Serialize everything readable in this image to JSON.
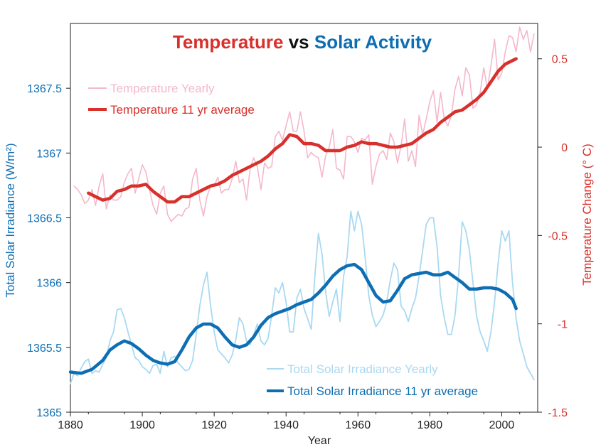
{
  "colors": {
    "temp_line": "#d8302b",
    "temp_yearly": "#f4b8cb",
    "tsi_line": "#0e6eb3",
    "tsi_yearly": "#a9d9f2",
    "title_black": "#111111",
    "axis": "#222222"
  },
  "chart_data": {
    "type": "line",
    "title_parts": [
      "Temperature",
      " vs ",
      "Solar Activity"
    ],
    "xlabel": "Year",
    "ylabel_left": "Total Solar Irradiance (W/m²)",
    "ylabel_right": "Temperature Change (° C)",
    "xlim": [
      1880,
      2010
    ],
    "ylim_left": [
      1365,
      1368
    ],
    "ylim_right": [
      -1.5,
      0.7
    ],
    "x_ticks": [
      1880,
      1900,
      1920,
      1940,
      1960,
      1980,
      2000
    ],
    "x_tick_labels": [
      "1880",
      "1900",
      "1920",
      "1940",
      "1960",
      "1980",
      "2000"
    ],
    "y_left_ticks": [
      1365,
      1365.5,
      1366,
      1366.5,
      1367,
      1367.5
    ],
    "y_left_tick_labels": [
      "1365",
      "1365.5",
      "1366",
      "1366.5",
      "1367",
      "1367.5"
    ],
    "y_right_ticks": [
      -1.5,
      -1,
      -0.5,
      0,
      0.5
    ],
    "y_right_tick_labels": [
      "-1.5",
      "-1",
      "-0.5",
      "0",
      "0.5"
    ],
    "grid": false,
    "legend_top": [
      "Temperature Yearly",
      "Temperature 11 yr average"
    ],
    "legend_bottom": [
      "Total Solar Irradiance Yearly",
      "Total Solar Irradiance 11 yr average"
    ],
    "series": [
      {
        "name": "Temperature Yearly",
        "axis": "right",
        "x": [
          1881,
          1882,
          1883,
          1884,
          1885,
          1886,
          1887,
          1888,
          1889,
          1890,
          1891,
          1892,
          1893,
          1894,
          1895,
          1896,
          1897,
          1898,
          1899,
          1900,
          1901,
          1902,
          1903,
          1904,
          1905,
          1906,
          1907,
          1908,
          1909,
          1910,
          1911,
          1912,
          1913,
          1914,
          1915,
          1916,
          1917,
          1918,
          1919,
          1920,
          1921,
          1922,
          1923,
          1924,
          1925,
          1926,
          1927,
          1928,
          1929,
          1930,
          1931,
          1932,
          1933,
          1934,
          1935,
          1936,
          1937,
          1938,
          1939,
          1940,
          1941,
          1942,
          1943,
          1944,
          1945,
          1946,
          1947,
          1948,
          1949,
          1950,
          1951,
          1952,
          1953,
          1954,
          1955,
          1956,
          1957,
          1958,
          1959,
          1960,
          1961,
          1962,
          1963,
          1964,
          1965,
          1966,
          1967,
          1968,
          1969,
          1970,
          1971,
          1972,
          1973,
          1974,
          1975,
          1976,
          1977,
          1978,
          1979,
          1980,
          1981,
          1982,
          1983,
          1984,
          1985,
          1986,
          1987,
          1988,
          1989,
          1990,
          1991,
          1992,
          1993,
          1994,
          1995,
          1996,
          1997,
          1998,
          1999,
          2000,
          2001,
          2002,
          2003,
          2004,
          2005,
          2006,
          2007,
          2008,
          2009
        ],
        "values": [
          -0.22,
          -0.24,
          -0.27,
          -0.32,
          -0.3,
          -0.24,
          -0.33,
          -0.22,
          -0.15,
          -0.35,
          -0.27,
          -0.3,
          -0.3,
          -0.28,
          -0.2,
          -0.15,
          -0.12,
          -0.26,
          -0.18,
          -0.1,
          -0.14,
          -0.24,
          -0.33,
          -0.38,
          -0.26,
          -0.22,
          -0.38,
          -0.42,
          -0.4,
          -0.38,
          -0.39,
          -0.35,
          -0.34,
          -0.18,
          -0.12,
          -0.3,
          -0.39,
          -0.28,
          -0.22,
          -0.22,
          -0.17,
          -0.26,
          -0.24,
          -0.24,
          -0.18,
          -0.08,
          -0.2,
          -0.18,
          -0.3,
          -0.12,
          -0.06,
          -0.11,
          -0.24,
          -0.09,
          -0.12,
          -0.11,
          0.06,
          0.09,
          0.04,
          0.12,
          0.2,
          0.09,
          0.09,
          0.2,
          0.09,
          -0.06,
          -0.03,
          -0.05,
          -0.06,
          -0.17,
          -0.05,
          0.0,
          0.1,
          -0.12,
          -0.13,
          -0.18,
          0.06,
          0.06,
          0.03,
          -0.03,
          0.05,
          0.04,
          0.07,
          -0.21,
          -0.11,
          -0.04,
          -0.02,
          -0.07,
          0.08,
          0.03,
          -0.09,
          0.01,
          0.16,
          -0.08,
          -0.02,
          -0.11,
          0.18,
          0.07,
          0.16,
          0.26,
          0.32,
          0.14,
          0.31,
          0.16,
          0.12,
          0.18,
          0.33,
          0.4,
          0.29,
          0.45,
          0.41,
          0.22,
          0.24,
          0.31,
          0.45,
          0.33,
          0.46,
          0.61,
          0.38,
          0.42,
          0.54,
          0.63,
          0.62,
          0.54,
          0.68,
          0.61,
          0.66,
          0.54,
          0.64
        ]
      },
      {
        "name": "Temperature 11 yr average",
        "axis": "right",
        "x": [
          1885,
          1887,
          1889,
          1891,
          1893,
          1895,
          1897,
          1899,
          1901,
          1903,
          1905,
          1907,
          1909,
          1911,
          1913,
          1915,
          1917,
          1919,
          1921,
          1923,
          1925,
          1927,
          1929,
          1931,
          1933,
          1935,
          1937,
          1939,
          1941,
          1943,
          1945,
          1947,
          1949,
          1951,
          1953,
          1955,
          1957,
          1959,
          1961,
          1963,
          1965,
          1967,
          1969,
          1971,
          1973,
          1975,
          1977,
          1979,
          1981,
          1983,
          1985,
          1987,
          1989,
          1991,
          1993,
          1995,
          1997,
          1999,
          2001,
          2003,
          2004
        ],
        "values": [
          -0.26,
          -0.28,
          -0.3,
          -0.29,
          -0.25,
          -0.24,
          -0.22,
          -0.22,
          -0.21,
          -0.25,
          -0.28,
          -0.31,
          -0.31,
          -0.28,
          -0.28,
          -0.26,
          -0.24,
          -0.22,
          -0.21,
          -0.19,
          -0.16,
          -0.14,
          -0.12,
          -0.1,
          -0.08,
          -0.05,
          -0.01,
          0.02,
          0.07,
          0.06,
          0.02,
          0.02,
          0.01,
          -0.02,
          -0.02,
          -0.02,
          0.0,
          0.01,
          0.03,
          0.02,
          0.02,
          0.01,
          0.0,
          0.0,
          0.01,
          0.02,
          0.05,
          0.08,
          0.1,
          0.14,
          0.17,
          0.2,
          0.21,
          0.24,
          0.27,
          0.31,
          0.37,
          0.43,
          0.47,
          0.49,
          0.5
        ]
      },
      {
        "name": "Total Solar Irradiance Yearly",
        "axis": "left",
        "x": [
          1880,
          1881,
          1882,
          1883,
          1884,
          1885,
          1886,
          1887,
          1888,
          1889,
          1890,
          1891,
          1892,
          1893,
          1894,
          1895,
          1896,
          1897,
          1898,
          1899,
          1900,
          1901,
          1902,
          1903,
          1904,
          1905,
          1906,
          1907,
          1908,
          1909,
          1910,
          1911,
          1912,
          1913,
          1914,
          1915,
          1916,
          1917,
          1918,
          1919,
          1920,
          1921,
          1922,
          1923,
          1924,
          1925,
          1926,
          1927,
          1928,
          1929,
          1930,
          1931,
          1932,
          1933,
          1934,
          1935,
          1936,
          1937,
          1938,
          1939,
          1940,
          1941,
          1942,
          1943,
          1944,
          1945,
          1946,
          1947,
          1948,
          1949,
          1950,
          1951,
          1952,
          1953,
          1954,
          1955,
          1956,
          1957,
          1958,
          1959,
          1960,
          1961,
          1962,
          1963,
          1964,
          1965,
          1966,
          1967,
          1968,
          1969,
          1970,
          1971,
          1972,
          1973,
          1974,
          1975,
          1976,
          1977,
          1978,
          1979,
          1980,
          1981,
          1982,
          1983,
          1984,
          1985,
          1986,
          1987,
          1988,
          1989,
          1990,
          1991,
          1992,
          1993,
          1994,
          1995,
          1996,
          1997,
          1998,
          1999,
          2000,
          2001,
          2002,
          2003,
          2004,
          2005,
          2006,
          2007,
          2008,
          2009
        ],
        "values": [
          1365.22,
          1365.3,
          1365.28,
          1365.34,
          1365.39,
          1365.41,
          1365.3,
          1365.32,
          1365.31,
          1365.37,
          1365.42,
          1365.55,
          1365.62,
          1365.79,
          1365.8,
          1365.73,
          1365.62,
          1365.52,
          1365.42,
          1365.4,
          1365.35,
          1365.33,
          1365.3,
          1365.36,
          1365.37,
          1365.3,
          1365.47,
          1365.35,
          1365.42,
          1365.43,
          1365.38,
          1365.35,
          1365.32,
          1365.33,
          1365.4,
          1365.6,
          1365.82,
          1365.98,
          1366.08,
          1365.82,
          1365.62,
          1365.48,
          1365.45,
          1365.42,
          1365.38,
          1365.44,
          1365.56,
          1365.73,
          1365.68,
          1365.55,
          1365.52,
          1365.6,
          1365.68,
          1365.55,
          1365.52,
          1365.57,
          1365.75,
          1365.96,
          1365.92,
          1366.0,
          1365.85,
          1365.62,
          1365.62,
          1365.88,
          1365.95,
          1365.8,
          1365.72,
          1365.64,
          1366.05,
          1366.38,
          1366.22,
          1365.93,
          1365.74,
          1365.85,
          1365.95,
          1365.7,
          1366.05,
          1366.2,
          1366.55,
          1366.4,
          1366.55,
          1366.45,
          1366.2,
          1365.9,
          1365.75,
          1365.66,
          1365.7,
          1365.75,
          1365.85,
          1366.02,
          1366.15,
          1366.1,
          1365.82,
          1365.78,
          1365.7,
          1365.8,
          1365.88,
          1366.05,
          1366.25,
          1366.45,
          1366.5,
          1366.5,
          1366.28,
          1365.9,
          1365.73,
          1365.6,
          1365.6,
          1365.75,
          1366.05,
          1366.47,
          1366.4,
          1366.25,
          1366.0,
          1365.74,
          1365.62,
          1365.55,
          1365.47,
          1365.62,
          1365.85,
          1366.15,
          1366.4,
          1366.32,
          1366.4,
          1366.0,
          1365.72,
          1365.55,
          1365.45,
          1365.35,
          1365.3,
          1365.25
        ]
      },
      {
        "name": "Total Solar Irradiance 11 yr average",
        "axis": "left",
        "x": [
          1880,
          1883,
          1886,
          1889,
          1891,
          1893,
          1895,
          1897,
          1899,
          1901,
          1903,
          1905,
          1907,
          1909,
          1911,
          1913,
          1915,
          1917,
          1919,
          1921,
          1923,
          1925,
          1927,
          1929,
          1931,
          1933,
          1935,
          1937,
          1939,
          1941,
          1943,
          1945,
          1947,
          1949,
          1951,
          1953,
          1955,
          1957,
          1959,
          1961,
          1963,
          1965,
          1967,
          1969,
          1971,
          1973,
          1975,
          1977,
          1979,
          1981,
          1983,
          1985,
          1987,
          1989,
          1991,
          1993,
          1995,
          1997,
          1999,
          2001,
          2003,
          2004
        ],
        "values": [
          1365.31,
          1365.3,
          1365.33,
          1365.4,
          1365.48,
          1365.52,
          1365.55,
          1365.53,
          1365.49,
          1365.44,
          1365.4,
          1365.38,
          1365.37,
          1365.39,
          1365.48,
          1365.58,
          1365.65,
          1365.68,
          1365.68,
          1365.65,
          1365.58,
          1365.52,
          1365.5,
          1365.52,
          1365.58,
          1365.67,
          1365.73,
          1365.76,
          1365.78,
          1365.8,
          1365.83,
          1365.85,
          1365.87,
          1365.92,
          1365.98,
          1366.05,
          1366.1,
          1366.13,
          1366.14,
          1366.1,
          1366.0,
          1365.9,
          1365.85,
          1365.86,
          1365.94,
          1366.03,
          1366.06,
          1366.07,
          1366.08,
          1366.06,
          1366.06,
          1366.08,
          1366.04,
          1366.0,
          1365.95,
          1365.95,
          1365.96,
          1365.96,
          1365.95,
          1365.92,
          1365.87,
          1365.8
        ]
      }
    ]
  }
}
